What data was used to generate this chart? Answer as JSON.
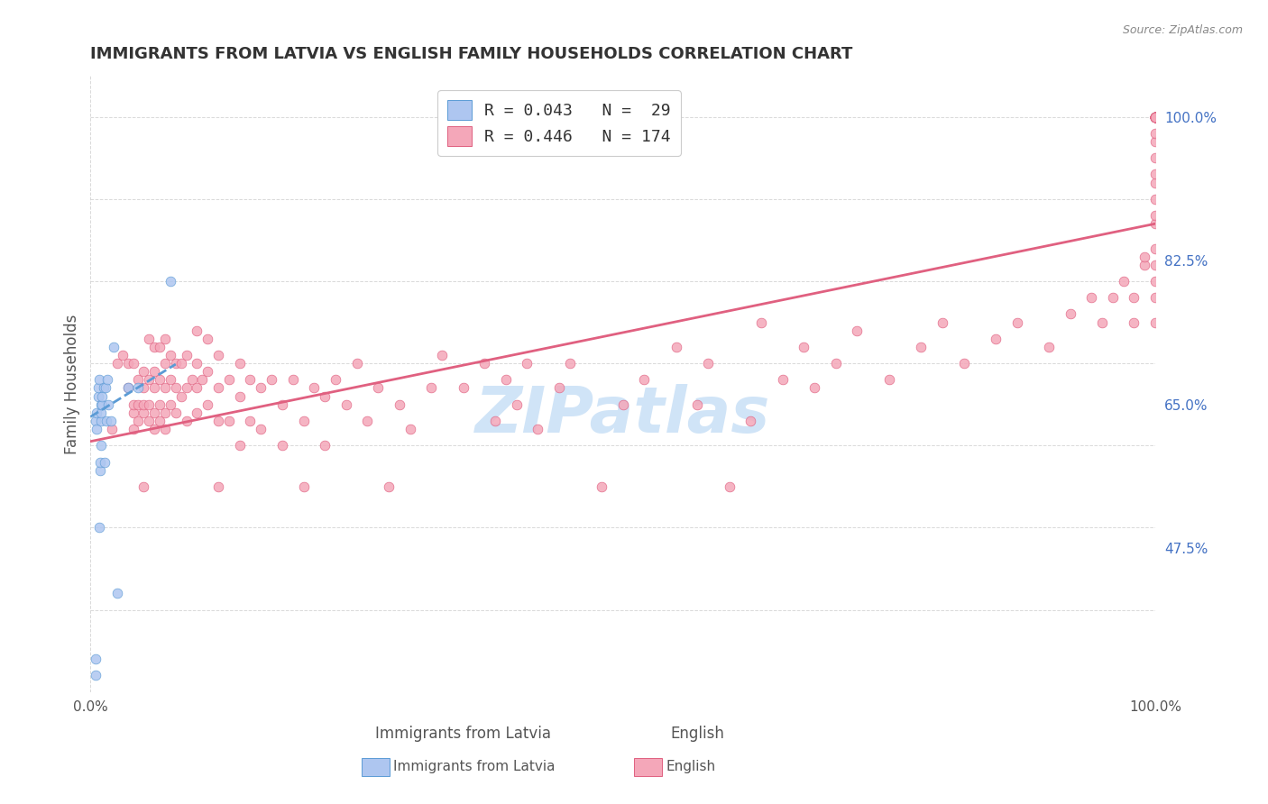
{
  "title": "IMMIGRANTS FROM LATVIA VS ENGLISH FAMILY HOUSEHOLDS CORRELATION CHART",
  "source": "Source: ZipAtlas.com",
  "xlabel_bottom": "",
  "ylabel": "Family Households",
  "x_tick_labels": [
    "0.0%",
    "100.0%"
  ],
  "y_tick_labels": [
    "47.5%",
    "65.0%",
    "82.5%",
    "100.0%"
  ],
  "y_tick_positions": [
    0.475,
    0.65,
    0.825,
    1.0
  ],
  "x_lim": [
    0.0,
    1.0
  ],
  "y_lim": [
    0.3,
    1.05
  ],
  "legend_items": [
    {
      "label": "R = 0.043   N =  29",
      "color": "#aec6f0"
    },
    {
      "label": "R = 0.446   N = 174",
      "color": "#f4a7b9"
    }
  ],
  "scatter_blue": {
    "x": [
      0.005,
      0.005,
      0.005,
      0.006,
      0.006,
      0.007,
      0.007,
      0.008,
      0.008,
      0.009,
      0.009,
      0.01,
      0.01,
      0.01,
      0.01,
      0.011,
      0.011,
      0.012,
      0.013,
      0.014,
      0.015,
      0.016,
      0.017,
      0.019,
      0.022,
      0.025,
      0.035,
      0.045,
      0.075
    ],
    "y": [
      0.32,
      0.34,
      0.63,
      0.62,
      0.64,
      0.66,
      0.67,
      0.5,
      0.68,
      0.57,
      0.58,
      0.6,
      0.63,
      0.64,
      0.65,
      0.65,
      0.66,
      0.67,
      0.58,
      0.67,
      0.63,
      0.68,
      0.65,
      0.63,
      0.72,
      0.42,
      0.67,
      0.67,
      0.8
    ],
    "color": "#aec6f0",
    "edgecolor": "#5b9bd5",
    "size": 60
  },
  "scatter_pink": {
    "color": "#f4a7b9",
    "edgecolor": "#e06080",
    "size": 60,
    "x": [
      0.02,
      0.025,
      0.03,
      0.035,
      0.035,
      0.04,
      0.04,
      0.04,
      0.04,
      0.045,
      0.045,
      0.045,
      0.05,
      0.05,
      0.05,
      0.05,
      0.05,
      0.055,
      0.055,
      0.055,
      0.055,
      0.06,
      0.06,
      0.06,
      0.06,
      0.06,
      0.065,
      0.065,
      0.065,
      0.065,
      0.07,
      0.07,
      0.07,
      0.07,
      0.07,
      0.075,
      0.075,
      0.075,
      0.08,
      0.08,
      0.08,
      0.085,
      0.085,
      0.09,
      0.09,
      0.09,
      0.095,
      0.1,
      0.1,
      0.1,
      0.1,
      0.105,
      0.11,
      0.11,
      0.11,
      0.12,
      0.12,
      0.12,
      0.12,
      0.13,
      0.13,
      0.14,
      0.14,
      0.14,
      0.15,
      0.15,
      0.16,
      0.16,
      0.17,
      0.18,
      0.18,
      0.19,
      0.2,
      0.2,
      0.21,
      0.22,
      0.22,
      0.23,
      0.24,
      0.25,
      0.26,
      0.27,
      0.28,
      0.29,
      0.3,
      0.32,
      0.33,
      0.35,
      0.37,
      0.38,
      0.39,
      0.4,
      0.41,
      0.42,
      0.44,
      0.45,
      0.48,
      0.5,
      0.52,
      0.55,
      0.57,
      0.58,
      0.6,
      0.62,
      0.63,
      0.65,
      0.67,
      0.68,
      0.7,
      0.72,
      0.75,
      0.78,
      0.8,
      0.82,
      0.85,
      0.87,
      0.9,
      0.92,
      0.94,
      0.95,
      0.96,
      0.97,
      0.98,
      0.98,
      0.99,
      0.99,
      1.0,
      1.0,
      1.0,
      1.0,
      1.0,
      1.0,
      1.0,
      1.0,
      1.0,
      1.0,
      1.0,
      1.0,
      1.0,
      1.0,
      1.0,
      1.0,
      1.0,
      1.0,
      1.0,
      1.0,
      1.0,
      1.0,
      1.0,
      1.0,
      1.0,
      1.0,
      1.0,
      1.0,
      1.0,
      1.0,
      1.0,
      1.0,
      1.0,
      1.0,
      1.0,
      1.0,
      1.0,
      1.0,
      1.0,
      1.0,
      1.0,
      1.0,
      1.0,
      1.0,
      1.0,
      1.0,
      1.0,
      1.0,
      1.0,
      1.0,
      1.0,
      1.0,
      1.0,
      1.0,
      1.0,
      1.0,
      1.0
    ],
    "y": [
      0.62,
      0.7,
      0.71,
      0.67,
      0.7,
      0.62,
      0.64,
      0.65,
      0.7,
      0.63,
      0.65,
      0.68,
      0.55,
      0.64,
      0.65,
      0.67,
      0.69,
      0.63,
      0.65,
      0.68,
      0.73,
      0.62,
      0.64,
      0.67,
      0.69,
      0.72,
      0.63,
      0.65,
      0.68,
      0.72,
      0.62,
      0.64,
      0.67,
      0.7,
      0.73,
      0.65,
      0.68,
      0.71,
      0.64,
      0.67,
      0.7,
      0.66,
      0.7,
      0.63,
      0.67,
      0.71,
      0.68,
      0.64,
      0.67,
      0.7,
      0.74,
      0.68,
      0.65,
      0.69,
      0.73,
      0.55,
      0.63,
      0.67,
      0.71,
      0.63,
      0.68,
      0.6,
      0.66,
      0.7,
      0.63,
      0.68,
      0.62,
      0.67,
      0.68,
      0.6,
      0.65,
      0.68,
      0.55,
      0.63,
      0.67,
      0.6,
      0.66,
      0.68,
      0.65,
      0.7,
      0.63,
      0.67,
      0.55,
      0.65,
      0.62,
      0.67,
      0.71,
      0.67,
      0.7,
      0.63,
      0.68,
      0.65,
      0.7,
      0.62,
      0.67,
      0.7,
      0.55,
      0.65,
      0.68,
      0.72,
      0.65,
      0.7,
      0.55,
      0.63,
      0.75,
      0.68,
      0.72,
      0.67,
      0.7,
      0.74,
      0.68,
      0.72,
      0.75,
      0.7,
      0.73,
      0.75,
      0.72,
      0.76,
      0.78,
      0.75,
      0.78,
      0.8,
      0.75,
      0.78,
      0.82,
      0.83,
      0.75,
      0.78,
      0.8,
      0.82,
      0.84,
      0.87,
      0.88,
      0.9,
      0.92,
      0.93,
      0.95,
      0.97,
      0.98,
      1.0,
      1.0,
      1.0,
      1.0,
      1.0,
      1.0,
      1.0,
      1.0,
      1.0,
      1.0,
      1.0,
      1.0,
      1.0,
      1.0,
      1.0,
      1.0,
      1.0,
      1.0,
      1.0,
      1.0,
      1.0,
      1.0,
      1.0,
      1.0,
      1.0,
      1.0,
      1.0,
      1.0,
      1.0,
      1.0,
      1.0,
      1.0,
      1.0,
      1.0,
      1.0,
      1.0,
      1.0,
      1.0,
      1.0,
      1.0,
      1.0,
      1.0,
      1.0,
      1.0
    ]
  },
  "trendline_blue": {
    "x": [
      0.0,
      0.08
    ],
    "y_intercept": 0.635,
    "slope": 0.8,
    "color": "#5b9bd5",
    "linestyle": "--",
    "linewidth": 2.0
  },
  "trendline_pink": {
    "x": [
      0.0,
      1.0
    ],
    "y_intercept": 0.605,
    "slope": 0.265,
    "color": "#e06080",
    "linestyle": "-",
    "linewidth": 2.0
  },
  "watermark": "ZIPatlas",
  "watermark_color": "#d0e4f7",
  "background_color": "#ffffff",
  "grid_color": "#d0d0d0",
  "title_color": "#333333",
  "axis_label_color": "#555555",
  "tick_color_right": "#4472c4",
  "legend_text_color_R": "#333333",
  "legend_text_color_N": "#4472c4"
}
